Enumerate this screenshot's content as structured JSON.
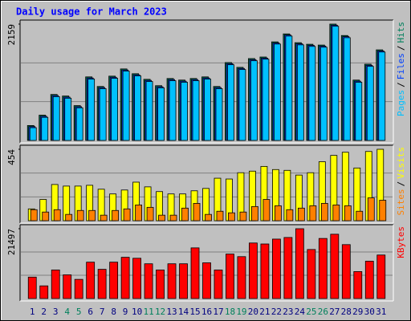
{
  "title": "Daily usage for March 2023",
  "legend_separator": "/",
  "chart_data": [
    {
      "type": "bar",
      "ylim": [
        0,
        2159
      ],
      "yticks": [
        2159
      ],
      "series": [
        {
          "name": "Hits",
          "color": "#00805C",
          "values": [
            277,
            469,
            853,
            824,
            646,
            1179,
            1001,
            1193,
            1327,
            1238,
            1134,
            1016,
            1149,
            1120,
            1149,
            1179,
            1001,
            1445,
            1356,
            1519,
            1548,
            1829,
            1977,
            1814,
            1785,
            1770,
            2159,
            1947,
            1120,
            1415,
            1681
          ]
        },
        {
          "name": "Files",
          "color": "#0040FF",
          "values": [
            257,
            449,
            833,
            804,
            626,
            1159,
            981,
            1173,
            1307,
            1218,
            1114,
            996,
            1129,
            1100,
            1129,
            1159,
            981,
            1425,
            1336,
            1499,
            1528,
            1809,
            1957,
            1794,
            1765,
            1750,
            2139,
            1927,
            1100,
            1395,
            1661
          ]
        },
        {
          "name": "Pages",
          "color": "#00C0FF",
          "values": [
            237,
            429,
            813,
            784,
            606,
            1139,
            961,
            1153,
            1287,
            1198,
            1094,
            976,
            1109,
            1080,
            1109,
            1139,
            961,
            1405,
            1316,
            1479,
            1508,
            1789,
            1937,
            1774,
            1745,
            1730,
            2119,
            1907,
            1080,
            1375,
            1641
          ]
        }
      ]
    },
    {
      "type": "bar",
      "ylim": [
        0,
        454
      ],
      "yticks": [
        454
      ],
      "series": [
        {
          "name": "Visits",
          "color": "#FFFF00",
          "values": [
            75,
            135,
            230,
            220,
            220,
            225,
            200,
            170,
            195,
            245,
            215,
            185,
            170,
            170,
            190,
            205,
            270,
            265,
            305,
            315,
            345,
            325,
            320,
            290,
            305,
            375,
            415,
            435,
            335,
            440,
            454
          ]
        },
        {
          "name": "Sites",
          "color": "#FF8000",
          "values": [
            70,
            55,
            70,
            40,
            65,
            65,
            35,
            65,
            75,
            100,
            85,
            35,
            35,
            80,
            110,
            40,
            60,
            50,
            55,
            90,
            135,
            95,
            70,
            80,
            95,
            110,
            100,
            95,
            60,
            145,
            130
          ]
        }
      ]
    },
    {
      "type": "bar",
      "ylim": [
        0,
        21497
      ],
      "yticks": [
        21497
      ],
      "categories": [
        "1",
        "2",
        "3",
        "4",
        "5",
        "6",
        "7",
        "8",
        "9",
        "10",
        "11",
        "12",
        "13",
        "14",
        "15",
        "16",
        "17",
        "18",
        "19",
        "20",
        "21",
        "22",
        "23",
        "24",
        "25",
        "26",
        "27",
        "28",
        "29",
        "30",
        "31"
      ],
      "category_colors": [
        "#000080",
        "#000080",
        "#000080",
        "#00805C",
        "#00805C",
        "#000080",
        "#000080",
        "#000080",
        "#000080",
        "#000080",
        "#00805C",
        "#00805C",
        "#000080",
        "#000080",
        "#000080",
        "#000080",
        "#000080",
        "#00805C",
        "#00805C",
        "#000080",
        "#000080",
        "#000080",
        "#000080",
        "#000080",
        "#00805C",
        "#00805C",
        "#000080",
        "#000080",
        "#000080",
        "#000080",
        "#000080"
      ],
      "series": [
        {
          "name": "KBytes",
          "color": "#FF0000",
          "values": [
            6600,
            3900,
            8800,
            7300,
            5900,
            11200,
            9000,
            11200,
            12700,
            12400,
            10700,
            8800,
            10700,
            10700,
            15600,
            11000,
            8800,
            13700,
            12900,
            17100,
            16800,
            18300,
            18800,
            21497,
            15100,
            18500,
            19800,
            16600,
            8300,
            11500,
            13400
          ]
        }
      ]
    }
  ]
}
